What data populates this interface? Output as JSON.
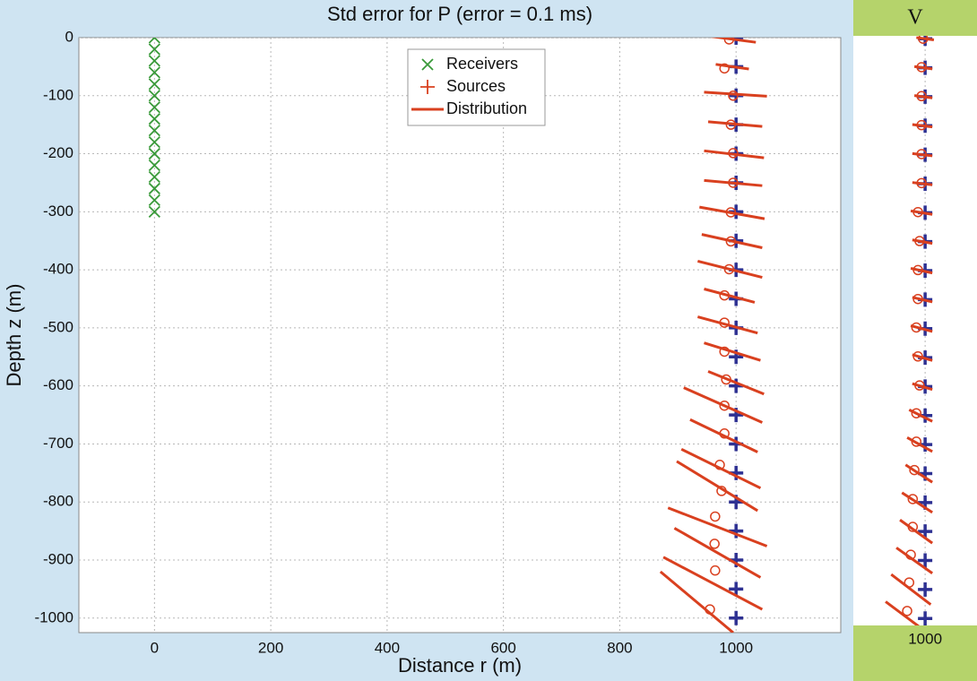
{
  "chart_data": [
    {
      "type": "scatter",
      "title": "Std error for P (error = 0.1 ms)",
      "xlabel": "Distance r (m)",
      "ylabel": "Depth z (m)",
      "xlim": [
        -130,
        1180
      ],
      "ylim": [
        -1025,
        0
      ],
      "xticks": [
        0,
        200,
        400,
        600,
        800,
        1000
      ],
      "yticks": [
        0,
        -100,
        -200,
        -300,
        -400,
        -500,
        -600,
        -700,
        -800,
        -900,
        -1000
      ],
      "grid": true,
      "legend": "upper center",
      "series": [
        {
          "name": "Receivers",
          "marker": "x",
          "color": "#3a9a3a",
          "x": [
            0,
            0,
            0,
            0,
            0,
            0,
            0,
            0,
            0,
            0,
            0,
            0,
            0,
            0,
            0,
            0
          ],
          "y": [
            0,
            -20,
            -40,
            -60,
            -80,
            -100,
            -120,
            -140,
            -160,
            -180,
            -200,
            -220,
            -240,
            -260,
            -280,
            -300
          ]
        },
        {
          "name": "Sources",
          "marker": "+",
          "color": "#d9401f",
          "marker_color": "#2e3192",
          "x": [
            1000,
            1000,
            1000,
            1000,
            1000,
            1000,
            1000,
            1000,
            1000,
            1000,
            1000,
            1000,
            1000,
            1000,
            1000,
            1000,
            1000,
            1000,
            1000,
            1000,
            1000
          ],
          "y": [
            0,
            -50,
            -100,
            -150,
            -200,
            -250,
            -300,
            -350,
            -400,
            -450,
            -500,
            -550,
            -600,
            -650,
            -700,
            -750,
            -800,
            -850,
            -900,
            -950,
            -1000
          ]
        },
        {
          "name": "Distribution",
          "marker": "line",
          "color": "#d9401f",
          "x_start": [
            950,
            965,
            945,
            952,
            945,
            945,
            937,
            941,
            934,
            945,
            934,
            945,
            952,
            910,
            921,
            906,
            898,
            883,
            894,
            875,
            870
          ],
          "z_start": [
            3,
            -46,
            -94,
            -145,
            -195,
            -246,
            -292,
            -339,
            -385,
            -433,
            -481,
            -526,
            -575,
            -603,
            -658,
            -709,
            -730,
            -810,
            -845,
            -895,
            -920
          ],
          "x_end": [
            1034,
            1022,
            1053,
            1045,
            1048,
            1045,
            1049,
            1045,
            1045,
            1032,
            1037,
            1042,
            1048,
            1045,
            1037,
            1042,
            1037,
            1053,
            1042,
            1045,
            995
          ],
          "z_end": [
            -8,
            -54,
            -101,
            -153,
            -207,
            -255,
            -312,
            -362,
            -413,
            -456,
            -509,
            -556,
            -614,
            -663,
            -714,
            -776,
            -815,
            -876,
            -930,
            -985,
            -1025
          ],
          "center_x": [
            988,
            980,
            995,
            991,
            995,
            995,
            991,
            991,
            988,
            980,
            980,
            980,
            983,
            980,
            980,
            972,
            975,
            964,
            963,
            964,
            955
          ],
          "center_z": [
            -3,
            -53,
            -100,
            -150,
            -199,
            -250,
            -301,
            -351,
            -399,
            -444,
            -491,
            -541,
            -589,
            -634,
            -682,
            -736,
            -781,
            -825,
            -872,
            -918,
            -985
          ]
        }
      ]
    },
    {
      "type": "scatter",
      "title": "V",
      "xlim": [
        820,
        1130
      ],
      "ylim": [
        -1012,
        5
      ],
      "xticks": [
        1000
      ],
      "grid": true,
      "series": [
        {
          "marker": "+",
          "color": "#2e3192",
          "x": [
            1000,
            1000,
            1000,
            1000,
            1000,
            1000,
            1000,
            1000,
            1000,
            1000,
            1000,
            1000,
            1000,
            1000,
            1000,
            1000,
            1000,
            1000,
            1000,
            1000,
            1000
          ],
          "y": [
            0,
            -50,
            -100,
            -150,
            -200,
            -250,
            -300,
            -350,
            -400,
            -450,
            -500,
            -550,
            -600,
            -650,
            -700,
            -750,
            -800,
            -850,
            -900,
            -950,
            -1000
          ]
        },
        {
          "marker": "line",
          "color": "#d9401f",
          "x_start": [
            978,
            973,
            973,
            968,
            968,
            968,
            964,
            968,
            964,
            968,
            964,
            968,
            968,
            960,
            955,
            951,
            942,
            937,
            928,
            915,
            901
          ],
          "z_start": [
            2,
            -48,
            -98,
            -148,
            -198,
            -248,
            -297,
            -347,
            -396,
            -446,
            -495,
            -545,
            -595,
            -640,
            -688,
            -735,
            -783,
            -830,
            -878,
            -924,
            -971
          ],
          "x_end": [
            1022,
            1018,
            1018,
            1018,
            1018,
            1018,
            1018,
            1018,
            1018,
            1018,
            1018,
            1018,
            1018,
            1018,
            1018,
            1018,
            1018,
            1018,
            1018,
            1014,
            1014
          ],
          "z_end": [
            -2,
            -52,
            -102,
            -152,
            -202,
            -252,
            -303,
            -353,
            -404,
            -454,
            -505,
            -555,
            -605,
            -660,
            -712,
            -765,
            -817,
            -870,
            -922,
            -976,
            -1029
          ],
          "center_x": [
            995,
            991,
            991,
            991,
            991,
            991,
            982,
            986,
            982,
            982,
            978,
            982,
            986,
            978,
            978,
            973,
            969,
            969,
            964,
            960,
            955
          ],
          "center_z": [
            0,
            -49,
            -99,
            -149,
            -199,
            -249,
            -299,
            -349,
            -399,
            -449,
            -498,
            -548,
            -598,
            -646,
            -695,
            -744,
            -794,
            -842,
            -890,
            -938,
            -987
          ]
        }
      ]
    }
  ]
}
